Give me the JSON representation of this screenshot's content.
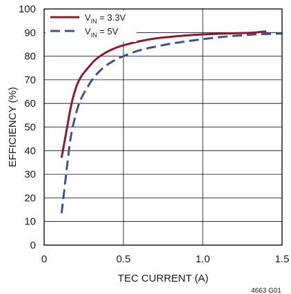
{
  "chart_data": {
    "type": "line",
    "xlabel": "TEC CURRENT (A)",
    "ylabel": "EFFICIENCY (%)",
    "xlim": [
      0,
      1.5
    ],
    "ylim": [
      0,
      100
    ],
    "x_ticks": [
      "0",
      "0.5",
      "1.0",
      "1.5"
    ],
    "y_ticks": [
      "0",
      "10",
      "20",
      "30",
      "40",
      "50",
      "60",
      "70",
      "80",
      "90",
      "100"
    ],
    "grid": true,
    "legend_position": "top-left",
    "note": "4663 G01",
    "series": [
      {
        "name": "VIN = 3.3V",
        "name_main": "V",
        "name_sub": "IN",
        "name_rest": " = 3.3V",
        "color": "#8b1a2e",
        "style": "solid",
        "x": [
          0.11,
          0.14,
          0.17,
          0.2,
          0.23,
          0.27,
          0.32,
          0.38,
          0.45,
          0.5,
          0.6,
          0.7,
          0.8,
          0.9,
          1.0,
          1.1,
          1.2,
          1.3,
          1.4
        ],
        "y": [
          37,
          48,
          59,
          66.5,
          71,
          74.5,
          78.3,
          81.2,
          83.5,
          84.6,
          86.3,
          87.5,
          88.2,
          88.8,
          89.2,
          89.5,
          89.7,
          89.9,
          90.5
        ]
      },
      {
        "name": "VIN = 5V",
        "name_main": "V",
        "name_sub": "IN",
        "name_rest": " = 5V",
        "color": "#3c4f9a",
        "style": "dashed",
        "x": [
          0.11,
          0.13,
          0.15,
          0.17,
          0.2,
          0.23,
          0.27,
          0.32,
          0.38,
          0.45,
          0.5,
          0.6,
          0.7,
          0.8,
          0.9,
          1.0,
          1.1,
          1.2,
          1.3,
          1.4,
          1.5
        ],
        "y": [
          13.5,
          25,
          36.5,
          46.5,
          55.5,
          61.5,
          66.5,
          71.5,
          75.5,
          78.5,
          80,
          82.5,
          84,
          85.3,
          86.3,
          87.2,
          88,
          88.6,
          89.1,
          89.4,
          89.6
        ]
      }
    ]
  }
}
